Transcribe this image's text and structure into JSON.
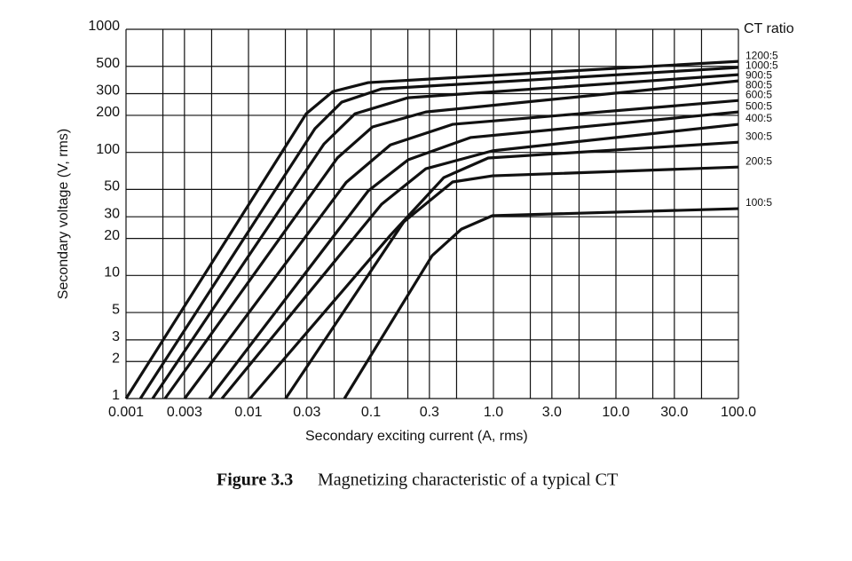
{
  "chart_data": {
    "type": "line",
    "log_x": true,
    "log_y": true,
    "grid": true,
    "color": "#111111",
    "xlabel": "Secondary exciting current (A, rms)",
    "ylabel": "Secondary voltage (V, rms)",
    "legend_title": "CT ratio",
    "caption_label": "Figure 3.3",
    "caption_text": "Magnetizing characteristic of a typical CT",
    "xlim": [
      0.001,
      100
    ],
    "ylim": [
      1,
      1000
    ],
    "xticks": [
      0.001,
      0.003,
      0.01,
      0.03,
      0.1,
      0.3,
      {
        "value": 1,
        "label": "1.0"
      },
      {
        "value": 3,
        "label": "3.0"
      },
      {
        "value": 10,
        "label": "10.0"
      },
      {
        "value": 30,
        "label": "30.0"
      },
      {
        "value": 100,
        "label": "100.0"
      }
    ],
    "xgrid": [
      0.001,
      0.002,
      0.003,
      0.005,
      0.01,
      0.02,
      0.03,
      0.05,
      0.1,
      0.2,
      0.3,
      0.5,
      1,
      2,
      3,
      5,
      10,
      20,
      30,
      50,
      100
    ],
    "yticks": [
      1,
      2,
      3,
      5,
      10,
      20,
      30,
      50,
      100,
      200,
      300,
      500,
      1000
    ],
    "series": [
      {
        "name": "1200:5",
        "x": [
          0.001,
          0.0296,
          0.0488,
          0.095,
          100
        ],
        "values": [
          1,
          206,
          312,
          369,
          549
        ]
      },
      {
        "name": "1000:5",
        "x": [
          0.00131,
          0.0349,
          0.0577,
          0.122,
          100
        ],
        "values": [
          1,
          156,
          256,
          328,
          489
        ]
      },
      {
        "name": "900:5",
        "x": [
          0.00165,
          0.0413,
          0.0741,
          0.201,
          100
        ],
        "values": [
          1,
          117,
          206,
          278,
          428
        ]
      },
      {
        "name": "800:5",
        "x": [
          0.00208,
          0.0531,
          0.103,
          0.281,
          100
        ],
        "values": [
          1,
          90,
          161,
          213,
          381
        ]
      },
      {
        "name": "600:5",
        "x": [
          0.00301,
          0.0627,
          0.144,
          0.464,
          100
        ],
        "values": [
          1,
          57,
          115,
          169,
          264
        ]
      },
      {
        "name": "500:5",
        "x": [
          0.0048,
          0.095,
          0.201,
          0.648,
          100
        ],
        "values": [
          1,
          48.7,
          87,
          132,
          213
        ]
      },
      {
        "name": "400:5",
        "x": [
          0.00607,
          0.122,
          0.281,
          0.984,
          100
        ],
        "values": [
          1,
          37.9,
          73.7,
          103,
          169
        ]
      },
      {
        "name": "300:5",
        "x": [
          0.0103,
          0.144,
          0.393,
          0.906,
          100
        ],
        "values": [
          1,
          21.2,
          62.4,
          90,
          121
        ]
      },
      {
        "name": "200:5",
        "x": [
          0.0201,
          0.185,
          0.464,
          0.984,
          100
        ],
        "values": [
          1,
          27.2,
          57.5,
          64.5,
          76
        ]
      },
      {
        "name": "100:5",
        "x": [
          0.0607,
          0.316,
          0.548,
          0.98,
          100
        ],
        "values": [
          1,
          14.5,
          23.8,
          30.6,
          34.9
        ]
      }
    ]
  }
}
